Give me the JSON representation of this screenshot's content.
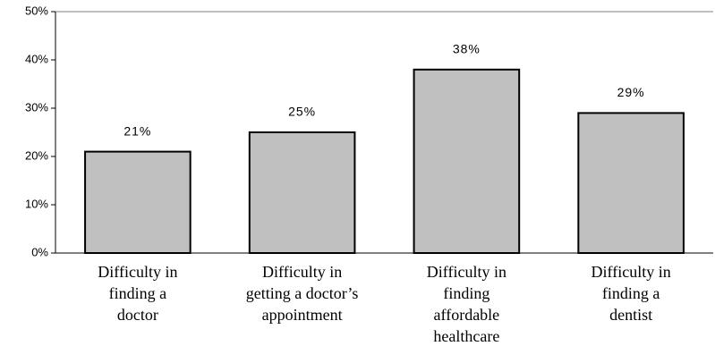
{
  "chart_data": {
    "type": "bar",
    "categories": [
      [
        "Difficulty in",
        "finding  a",
        "doctor"
      ],
      [
        "Difficulty in",
        "getting a doctor’s",
        "appointment"
      ],
      [
        "Difficulty in",
        "finding",
        "affordable",
        "healthcare"
      ],
      [
        "Difficulty in",
        "finding a",
        "dentist"
      ]
    ],
    "values": [
      21,
      25,
      38,
      29
    ],
    "value_labels": [
      "21%",
      "25%",
      "38%",
      "29%"
    ],
    "color": "#c0c0c0",
    "ylim": [
      0,
      50
    ],
    "yticks": [
      {
        "value": 0,
        "label": "0%"
      },
      {
        "value": 10,
        "label": "10%"
      },
      {
        "value": 20,
        "label": "20%"
      },
      {
        "value": 30,
        "label": "30%"
      },
      {
        "value": 40,
        "label": "40%"
      },
      {
        "value": 50,
        "label": "50%"
      }
    ],
    "grid": false
  }
}
